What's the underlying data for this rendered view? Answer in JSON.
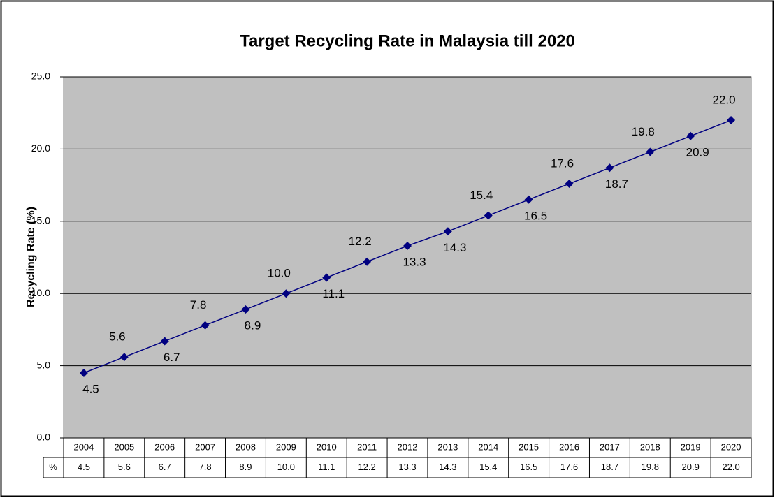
{
  "chart_data": {
    "type": "line",
    "title": "Target Recycling Rate in Malaysia till 2020",
    "y_label": "Recycling Rate (%)",
    "table_row_label": "%",
    "categories": [
      "2004",
      "2005",
      "2006",
      "2007",
      "2008",
      "2009",
      "2010",
      "2011",
      "2012",
      "2013",
      "2014",
      "2015",
      "2016",
      "2017",
      "2018",
      "2019",
      "2020"
    ],
    "series": [
      {
        "name": "%",
        "color": "#000080",
        "values": [
          4.5,
          5.6,
          6.7,
          7.8,
          8.9,
          10.0,
          11.1,
          12.2,
          13.3,
          14.3,
          15.4,
          16.5,
          17.6,
          18.7,
          19.8,
          20.9,
          22.0
        ],
        "value_labels": [
          "4.5",
          "5.6",
          "6.7",
          "7.8",
          "8.9",
          "10.0",
          "11.1",
          "12.2",
          "13.3",
          "14.3",
          "15.4",
          "16.5",
          "17.6",
          "18.7",
          "19.8",
          "20.9",
          "22.0"
        ]
      }
    ],
    "ylim": [
      0,
      25
    ],
    "yticks": [
      {
        "value": 0,
        "label": "0.0"
      },
      {
        "value": 5,
        "label": "5.0"
      },
      {
        "value": 10,
        "label": "10.0"
      },
      {
        "value": 15,
        "label": "15.0"
      },
      {
        "value": 20,
        "label": "20.0"
      },
      {
        "value": 25,
        "label": "25.0"
      }
    ],
    "grid": true,
    "plot_background": "#c0c0c0"
  }
}
